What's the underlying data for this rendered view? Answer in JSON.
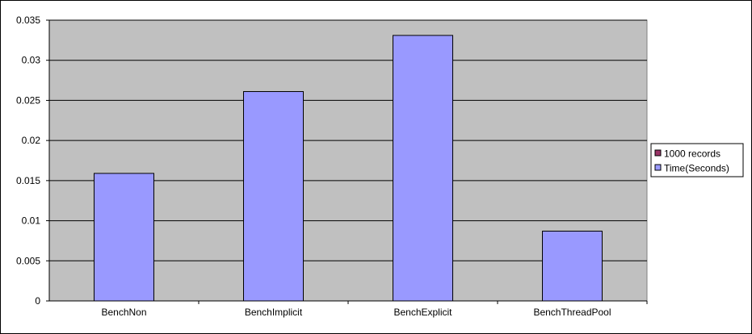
{
  "chart_data": {
    "type": "bar",
    "categories": [
      "BenchNon",
      "BenchImplicit",
      "BenchExplicit",
      "BenchThreadPool"
    ],
    "series": [
      {
        "name": "1000 records",
        "values": [
          0,
          0,
          0,
          0
        ],
        "color": "#993366"
      },
      {
        "name": "Time(Seconds)",
        "values": [
          0.0159,
          0.0261,
          0.0331,
          0.0087
        ],
        "color": "#9999ff"
      }
    ],
    "y_ticks": [
      "0",
      "0.005",
      "0.01",
      "0.015",
      "0.02",
      "0.025",
      "0.03",
      "0.035"
    ],
    "ylim": [
      0,
      0.035
    ],
    "grid": true,
    "legend_position": "right",
    "plot_background": "#c0c0c0"
  }
}
